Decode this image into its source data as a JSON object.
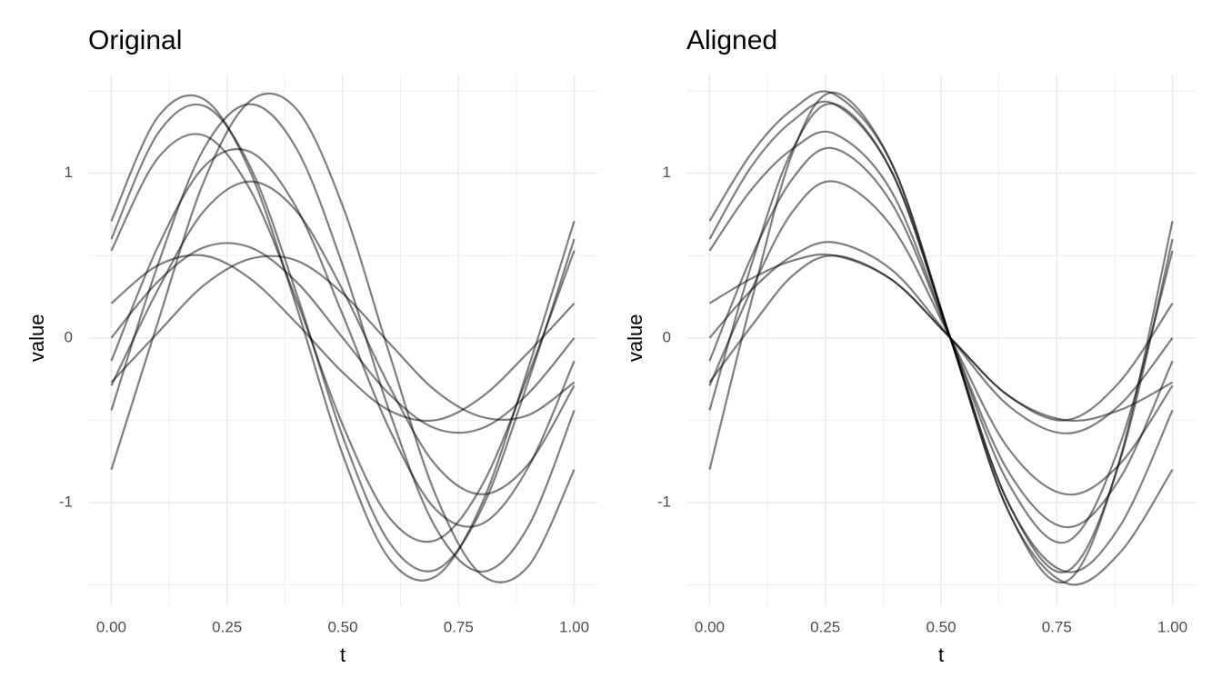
{
  "chart_data": [
    {
      "type": "line",
      "title": "Original",
      "x_label": "t",
      "y_label": "value",
      "x": [
        0,
        0.1,
        0.2,
        0.3,
        0.4,
        0.5,
        0.6,
        0.7,
        0.8,
        0.9,
        1.0
      ],
      "xlim": [
        -0.05,
        1.05
      ],
      "ylim": [
        -1.63,
        1.6
      ],
      "xticks": [
        {
          "value": 0,
          "label": "0.00"
        },
        {
          "value": 0.25,
          "label": "0.25"
        },
        {
          "value": 0.5,
          "label": "0.50"
        },
        {
          "value": 0.75,
          "label": "0.75"
        },
        {
          "value": 1,
          "label": "1.00"
        }
      ],
      "yticks": [
        -1,
        0,
        1
      ],
      "grid": true,
      "color": "#000000",
      "opacity": 0.5,
      "series": [
        {
          "values": [
            0.71,
            1.34,
            1.45,
            1.01,
            0.19,
            -0.71,
            -1.34,
            -1.45,
            -1.01,
            -0.19,
            0.71
          ]
        },
        {
          "values": [
            0.6,
            1.24,
            1.41,
            1.04,
            0.27,
            -0.6,
            -1.24,
            -1.41,
            -1.04,
            -0.27,
            0.6
          ]
        },
        {
          "values": [
            0.53,
            1.09,
            1.23,
            0.9,
            0.23,
            -0.53,
            -1.09,
            -1.23,
            -0.9,
            -0.23,
            0.53
          ]
        },
        {
          "values": [
            -0.8,
            0.09,
            0.95,
            1.44,
            1.39,
            0.8,
            -0.09,
            -0.95,
            -1.44,
            -1.39,
            -0.8
          ]
        },
        {
          "values": [
            -0.44,
            0.44,
            1.15,
            1.42,
            1.15,
            0.44,
            -0.44,
            -1.15,
            -1.42,
            -1.15,
            -0.44
          ]
        },
        {
          "values": [
            -0.29,
            0.29,
            0.77,
            0.95,
            0.77,
            0.29,
            -0.29,
            -0.77,
            -0.95,
            -0.77,
            -0.29
          ]
        },
        {
          "values": [
            0,
            0.34,
            0.55,
            0.55,
            0.34,
            0,
            -0.34,
            -0.55,
            -0.55,
            -0.34,
            0
          ]
        },
        {
          "values": [
            0.21,
            0.44,
            0.5,
            0.36,
            0.09,
            -0.21,
            -0.44,
            -0.5,
            -0.36,
            -0.09,
            0.21
          ]
        },
        {
          "values": [
            -0.27,
            0.03,
            0.32,
            0.48,
            0.47,
            0.27,
            -0.03,
            -0.32,
            -0.48,
            -0.47,
            -0.27
          ]
        },
        {
          "values": [
            -0.14,
            0.55,
            1.04,
            1.13,
            0.79,
            0.14,
            -0.55,
            -1.04,
            -1.13,
            -0.79,
            -0.14
          ]
        }
      ]
    },
    {
      "type": "line",
      "title": "Aligned",
      "x_label": "t",
      "y_label": "value",
      "x": [
        0,
        0.09,
        0.18,
        0.27,
        0.395,
        0.52,
        0.645,
        0.77,
        0.885,
        1.0
      ],
      "xlim": [
        -0.05,
        1.05
      ],
      "ylim": [
        -1.63,
        1.6
      ],
      "xticks": [
        {
          "value": 0,
          "label": "0.00"
        },
        {
          "value": 0.25,
          "label": "0.25"
        },
        {
          "value": 0.5,
          "label": "0.50"
        },
        {
          "value": 0.75,
          "label": "0.75"
        },
        {
          "value": 1,
          "label": "1.00"
        }
      ],
      "yticks": [
        -1,
        0,
        1
      ],
      "grid": true,
      "color": "#000000",
      "opacity": 0.5,
      "series": [
        {
          "values": [
            0.71,
            1.12,
            1.39,
            1.48,
            1.05,
            0,
            -1.05,
            -1.48,
            -0.75,
            0.71
          ]
        },
        {
          "values": [
            0.6,
            1.04,
            1.32,
            1.42,
            1.0,
            0,
            -1.0,
            -1.42,
            -0.76,
            0.6
          ]
        },
        {
          "values": [
            0.53,
            0.9,
            1.15,
            1.24,
            0.88,
            0,
            -0.88,
            -1.24,
            -0.66,
            0.53
          ]
        },
        {
          "values": [
            -0.8,
            0.22,
            1.13,
            1.49,
            1.05,
            0,
            -1.05,
            -1.49,
            -1.31,
            -0.8
          ]
        },
        {
          "values": [
            -0.44,
            0.44,
            1.15,
            1.42,
            1.0,
            0,
            -1.0,
            -1.42,
            -1.15,
            -0.44
          ]
        },
        {
          "values": [
            -0.29,
            0.29,
            0.77,
            0.95,
            0.67,
            0,
            -0.67,
            -0.95,
            -0.77,
            -0.29
          ]
        },
        {
          "values": [
            0,
            0.29,
            0.5,
            0.58,
            0.41,
            0,
            -0.41,
            -0.58,
            -0.41,
            0
          ]
        },
        {
          "values": [
            0.21,
            0.36,
            0.47,
            0.5,
            0.35,
            0,
            -0.35,
            -0.5,
            -0.27,
            0.21
          ]
        },
        {
          "values": [
            -0.27,
            0.07,
            0.38,
            0.5,
            0.35,
            0,
            -0.35,
            -0.5,
            -0.44,
            -0.27
          ]
        },
        {
          "values": [
            -0.14,
            0.49,
            0.97,
            1.15,
            0.81,
            0,
            -0.81,
            -1.15,
            -0.86,
            -0.14
          ]
        }
      ]
    }
  ]
}
